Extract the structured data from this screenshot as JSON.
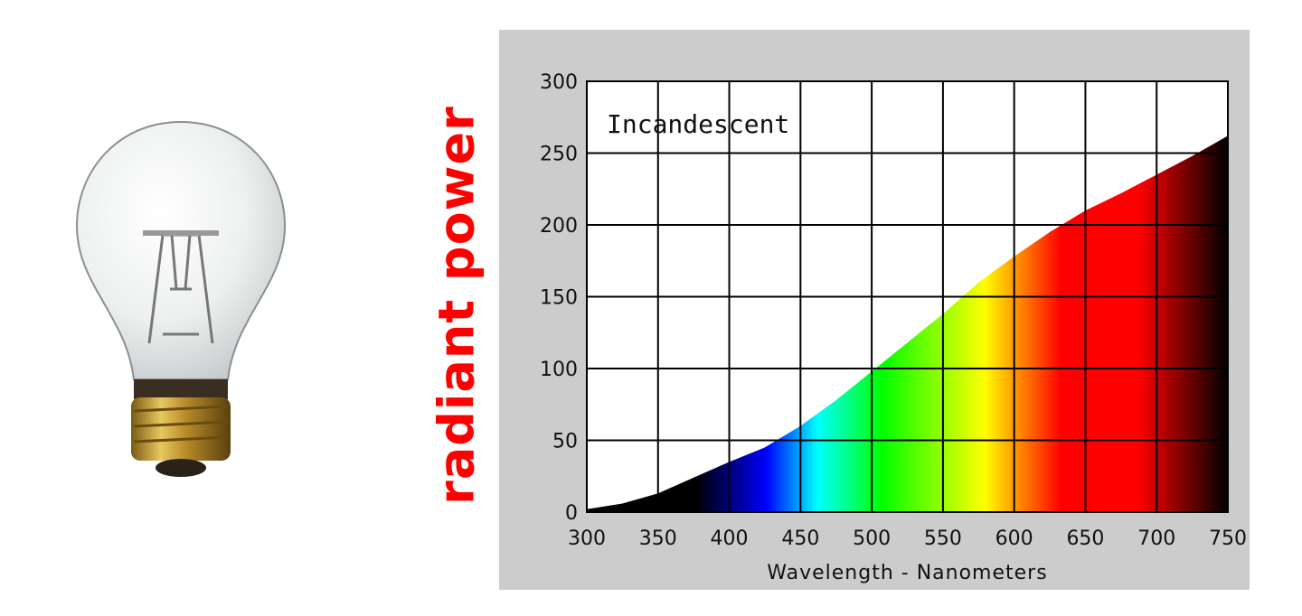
{
  "side_label": "radiant power",
  "chart_data": {
    "type": "area",
    "annotation": "Incandescent",
    "xlabel": "Wavelength - Nanometers",
    "ylabel": "",
    "xlim": [
      300,
      750
    ],
    "ylim": [
      0,
      300
    ],
    "x_ticks": [
      300,
      350,
      400,
      450,
      500,
      550,
      600,
      650,
      700,
      750
    ],
    "y_ticks": [
      0,
      50,
      100,
      150,
      200,
      250,
      300
    ],
    "grid": true,
    "x": [
      300,
      325,
      350,
      375,
      400,
      425,
      450,
      475,
      500,
      525,
      550,
      575,
      600,
      625,
      650,
      675,
      700,
      725,
      750
    ],
    "values": [
      2,
      6,
      13,
      24,
      35,
      45,
      60,
      78,
      98,
      118,
      138,
      160,
      178,
      195,
      210,
      222,
      235,
      248,
      262
    ],
    "colors": {
      "fill_gradient": [
        "#000000",
        "#000000",
        "#0000ff",
        "#00ffff",
        "#00ff00",
        "#ffff00",
        "#ff0000",
        "#ff0000",
        "#000000"
      ],
      "label": "#ff0000",
      "panel": "#cccccc"
    }
  }
}
